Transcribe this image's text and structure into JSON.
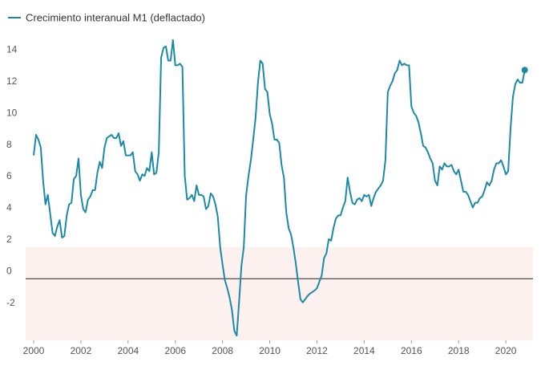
{
  "chart_data": {
    "type": "line",
    "series": [
      {
        "name": "Crecimiento interanual M1 (deflactado)",
        "color": "#1b8aa6",
        "values": [
          7.8,
          9.1,
          8.8,
          8.3,
          6.2,
          4.7,
          5.3,
          4.1,
          2.9,
          2.7,
          3.3,
          3.7,
          2.6,
          2.7,
          4.0,
          4.7,
          4.8,
          6.3,
          6.5,
          7.6,
          5.3,
          4.4,
          4.2,
          5.0,
          5.2,
          5.6,
          5.6,
          6.7,
          7.4,
          7.0,
          8.3,
          8.9,
          9.0,
          9.1,
          8.9,
          8.9,
          9.2,
          8.4,
          8.7,
          7.8,
          7.8,
          7.8,
          8.0,
          6.8,
          6.6,
          6.2,
          6.6,
          6.5,
          7.0,
          6.8,
          8.0,
          6.6,
          6.7,
          8.0,
          14.0,
          14.6,
          14.7,
          13.8,
          13.8,
          15.1,
          13.5,
          13.5,
          13.6,
          13.4,
          6.5,
          5.0,
          5.1,
          5.3,
          4.9,
          5.9,
          5.3,
          5.3,
          5.2,
          4.4,
          4.6,
          5.4,
          5.2,
          4.7,
          3.9,
          2.0,
          0.9,
          -0.1,
          -0.6,
          -1.2,
          -2.0,
          -3.3,
          -3.6,
          -1.5,
          0.8,
          2.0,
          5.3,
          6.5,
          7.5,
          8.8,
          10.2,
          12.4,
          13.8,
          13.6,
          12.0,
          11.8,
          10.4,
          9.8,
          8.8,
          8.8,
          8.6,
          7.2,
          6.4,
          4.2,
          3.2,
          2.8,
          2.0,
          1.0,
          -0.2,
          -1.3,
          -1.5,
          -1.3,
          -1.1,
          -0.95,
          -0.85,
          -0.75,
          -0.6,
          -0.2,
          0.2,
          1.3,
          1.6,
          2.5,
          2.4,
          3.2,
          3.8,
          4.0,
          4.0,
          4.5,
          4.9,
          6.4,
          5.5,
          4.8,
          4.7,
          5.0,
          5.1,
          4.9,
          5.3,
          5.2,
          5.3,
          4.6,
          5.1,
          5.5,
          5.7,
          5.9,
          6.2,
          7.5,
          11.8,
          12.2,
          12.5,
          13.0,
          13.2,
          13.8,
          13.5,
          13.6,
          13.5,
          13.5,
          10.9,
          10.5,
          10.3,
          9.9,
          9.2,
          8.4,
          8.3,
          8.0,
          7.6,
          7.3,
          6.2,
          5.9,
          7.1,
          6.9,
          7.3,
          7.1,
          7.1,
          7.2,
          6.8,
          6.6,
          6.9,
          6.2,
          5.5,
          5.5,
          5.3,
          4.9,
          4.5,
          4.8,
          4.8,
          5.1,
          5.2,
          5.6,
          6.1,
          5.9,
          6.2,
          6.9,
          7.3,
          7.3,
          7.5,
          7.1,
          6.6,
          6.8,
          9.5,
          11.5,
          12.3,
          12.6,
          12.4,
          12.4,
          13.2
        ]
      }
    ],
    "x": [
      2000.0,
      2000.1,
      2000.2,
      2000.3,
      2000.4,
      2000.5,
      2000.6,
      2000.7,
      2000.8,
      2000.9,
      2001.0,
      2001.1,
      2001.2,
      2001.3,
      2001.4,
      2001.5,
      2001.6,
      2001.7,
      2001.8,
      2001.9,
      2002.0,
      2002.1,
      2002.2,
      2002.3,
      2002.4,
      2002.5,
      2002.6,
      2002.7,
      2002.8,
      2002.9,
      2003.0,
      2003.1,
      2003.2,
      2003.3,
      2003.4,
      2003.5,
      2003.6,
      2003.7,
      2003.8,
      2003.9,
      2004.0,
      2004.1,
      2004.2,
      2004.3,
      2004.4,
      2004.5,
      2004.6,
      2004.7,
      2004.8,
      2004.9,
      2005.0,
      2005.1,
      2005.2,
      2005.3,
      2005.4,
      2005.5,
      2005.6,
      2005.7,
      2005.8,
      2005.9,
      2006.0,
      2006.1,
      2006.2,
      2006.3,
      2006.4,
      2006.5,
      2006.6,
      2006.7,
      2006.8,
      2006.9,
      2007.0,
      2007.1,
      2007.2,
      2007.3,
      2007.4,
      2007.5,
      2007.6,
      2007.7,
      2007.8,
      2007.9,
      2008.0,
      2008.1,
      2008.2,
      2008.3,
      2008.4,
      2008.5,
      2008.6,
      2008.7,
      2008.8,
      2008.9,
      2009.0,
      2009.1,
      2009.2,
      2009.3,
      2009.4,
      2009.5,
      2009.6,
      2009.7,
      2009.8,
      2009.9,
      2010.0,
      2010.1,
      2010.2,
      2010.3,
      2010.4,
      2010.5,
      2010.6,
      2010.7,
      2010.8,
      2010.9,
      2011.0,
      2011.1,
      2011.2,
      2011.3,
      2011.4,
      2011.5,
      2011.6,
      2011.7,
      2011.8,
      2011.9,
      2012.0,
      2012.1,
      2012.2,
      2012.3,
      2012.4,
      2012.5,
      2012.6,
      2012.7,
      2012.8,
      2012.9,
      2013.0,
      2013.1,
      2013.2,
      2013.3,
      2013.4,
      2013.5,
      2013.6,
      2013.7,
      2013.8,
      2013.9,
      2014.0,
      2014.1,
      2014.2,
      2014.3,
      2014.4,
      2014.5,
      2014.6,
      2014.7,
      2014.8,
      2014.9,
      2015.0,
      2015.1,
      2015.2,
      2015.3,
      2015.4,
      2015.5,
      2015.6,
      2015.7,
      2015.8,
      2015.9,
      2016.0,
      2016.1,
      2016.2,
      2016.3,
      2016.4,
      2016.5,
      2016.6,
      2016.7,
      2016.8,
      2016.9,
      2017.0,
      2017.1,
      2017.2,
      2017.3,
      2017.4,
      2017.5,
      2017.6,
      2017.7,
      2017.8,
      2017.9,
      2018.0,
      2018.1,
      2018.2,
      2018.3,
      2018.4,
      2018.5,
      2018.6,
      2018.7,
      2018.8,
      2018.9,
      2019.0,
      2019.1,
      2019.2,
      2019.3,
      2019.4,
      2019.5,
      2019.6,
      2019.7,
      2019.8,
      2019.9,
      2020.0,
      2020.1,
      2020.2,
      2020.3,
      2020.4,
      2020.5,
      2020.6,
      2020.7,
      2020.8
    ],
    "xlim": [
      1999.66,
      2021.15
    ],
    "xticks": [
      2000,
      2002,
      2004,
      2006,
      2008,
      2010,
      2012,
      2014,
      2016,
      2018,
      2020
    ],
    "ylim": [
      -3.9,
      15.6
    ],
    "yticks": [
      -2,
      0,
      2,
      4,
      6,
      8,
      10,
      12,
      14
    ],
    "highlight_below": 2,
    "highlight_color": "#fdf1ef",
    "zero_line": true,
    "end_marker": true,
    "legend": "top-left"
  }
}
